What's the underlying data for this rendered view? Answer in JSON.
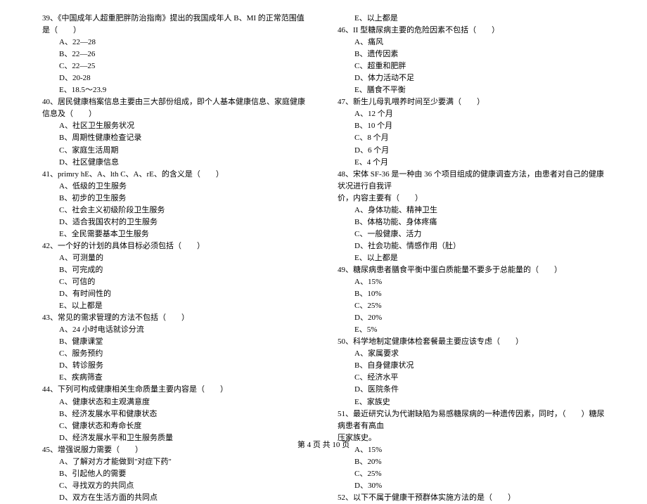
{
  "left_column": [
    {
      "q": "39、《中国成年人超重肥胖防治指南》提出的我国成年人 B、MI 的正常范围值是（　　）",
      "opts": [
        "A、22—28",
        "B、22—26",
        "C、22—25",
        "D、20-28",
        "E、18.5～23.9"
      ]
    },
    {
      "q": "40、居民健康档案信息主要由三大部份组成，即个人基本健康信息、家庭健康信息及（　　）",
      "opts": [
        "A、社区卫生服务状况",
        "B、周期性健康检查记录",
        "C、家庭生活周期",
        "D、社区健康信息"
      ]
    },
    {
      "q": "41、primry hE、A、lth C、A、rE、的含义是（　　）",
      "opts": [
        "A、低级的卫生服务",
        "B、初步的卫生服务",
        "C、社会主义初级阶段卫生服务",
        "D、适合我国农村的卫生服务",
        "E、全民需要基本卫生服务"
      ]
    },
    {
      "q": "42、一个好的计划的具体目标必须包括（　　）",
      "opts": [
        "A、可测量的",
        "B、可完成的",
        "C、可信的",
        "D、有时间性的",
        "E、以上都是"
      ]
    },
    {
      "q": "43、常见的需求管理的方法不包括（　　）",
      "opts": [
        "A、24 小时电话就诊分流",
        "B、健康课堂",
        "C、服务预约",
        "D、转诊服务",
        "E、疾病筛查"
      ]
    },
    {
      "q": "44、下列可构成健康相关生命质量主要内容是（　　）",
      "opts": [
        "A、健康状态和主观满意度",
        "B、经济发展水平和健康状态",
        "C、健康状态和寿命长度",
        "D、经济发展水平和卫生服务质量"
      ]
    },
    {
      "q": "45、增强说服力需要（　　）",
      "opts": [
        "A、了解对方才能做到\"对症下药\"",
        "B、引起他人的需要",
        "C、寻找双方的共同点",
        "D、双方在生活方面的共同点"
      ]
    }
  ],
  "right_column_pre": [
    {
      "opts": [
        "E、以上都是"
      ]
    }
  ],
  "right_column": [
    {
      "q": "46、II 型糖尿病主要的危险因素不包括（　　）",
      "opts": [
        "A、痛风",
        "B、遗传因素",
        "C、超重和肥胖",
        "D、体力活动不足",
        "E、膳食不平衡"
      ]
    },
    {
      "q": "47、新生儿母乳喂养时间至少要满（　　）",
      "opts": [
        "A、12 个月",
        "B、10 个月",
        "C、8 个月",
        "D、6 个月",
        "E、4 个月"
      ]
    },
    {
      "q": "48、宋体 SF-36 是一种由 36 个项目组成的健康调查方法，由患者对自己的健康状况进行自我评",
      "cont": "价，内容主要有（　　）",
      "opts": [
        "A、身体功能、精神卫生",
        "B、体格功能、身体疼痛",
        "C、一般健康、活力",
        "D、社会功能、情感作用（肚）",
        "E、以上都是"
      ]
    },
    {
      "q": "49、糖尿病患者膳食平衡中蛋白质能量不要多于总能量的（　　）",
      "opts": [
        "A、15%",
        "B、10%",
        "C、25%",
        "D、20%",
        "E、5%"
      ]
    },
    {
      "q": "50、科学地制定健康体检套餐最主要应该专虑（　　）",
      "opts": [
        "A、家属要求",
        "B、自身健康状况",
        "C、经济水平",
        "D、医院条件",
        "E、家族史"
      ]
    },
    {
      "q": "51、最近研究认为代谢缺陷为易感糖尿病的一种遗传因素，同时，（　　）糖尿病患者有高血",
      "cont": "压家族史。",
      "opts": [
        "A、15%",
        "B、20%",
        "C、25%",
        "D、30%"
      ]
    },
    {
      "q": "52、以下不属于健康干预群体实施方法的是（　　）",
      "opts": []
    }
  ],
  "footer": "第 4 页 共 10 页"
}
